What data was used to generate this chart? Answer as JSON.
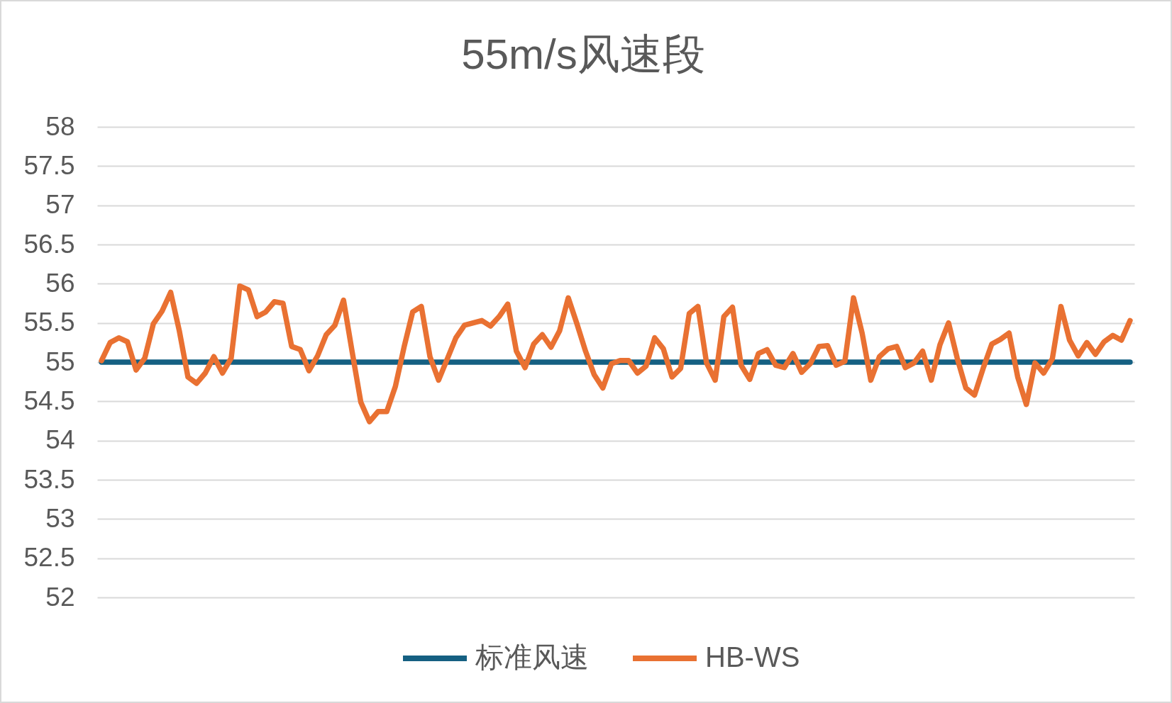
{
  "chart_data": {
    "type": "line",
    "title": "55m/s风速段",
    "categories": [
      null,
      null,
      null,
      null,
      null,
      null,
      null,
      null,
      null,
      null,
      null,
      null,
      null,
      null,
      null,
      null,
      null,
      null,
      null,
      null,
      null,
      null,
      null,
      null,
      null,
      null,
      null,
      null,
      null,
      null,
      null,
      null,
      null,
      null,
      null,
      null,
      null,
      null,
      null,
      null,
      null,
      null,
      null,
      null,
      null,
      null,
      null,
      null,
      null,
      null,
      null,
      null,
      null,
      null,
      null,
      null,
      null,
      null,
      null,
      null,
      null,
      null,
      null,
      null,
      null,
      null,
      null,
      null,
      null,
      null,
      null,
      null,
      null,
      null,
      null,
      null,
      null,
      null,
      null,
      null,
      null,
      null,
      null,
      null,
      null,
      null,
      null,
      null,
      null,
      null,
      null,
      null,
      null,
      null,
      null,
      null,
      null,
      null,
      null,
      null,
      null,
      null,
      null,
      null,
      null,
      null,
      null,
      null,
      null,
      null,
      null,
      null,
      null,
      null,
      null,
      null,
      null,
      null,
      null,
      null
    ],
    "series": [
      {
        "name": "标准风速",
        "color": "#156082",
        "values": [
          55,
          55,
          55,
          55,
          55,
          55,
          55,
          55,
          55,
          55,
          55,
          55,
          55,
          55,
          55,
          55,
          55,
          55,
          55,
          55,
          55,
          55,
          55,
          55,
          55,
          55,
          55,
          55,
          55,
          55,
          55,
          55,
          55,
          55,
          55,
          55,
          55,
          55,
          55,
          55,
          55,
          55,
          55,
          55,
          55,
          55,
          55,
          55,
          55,
          55,
          55,
          55,
          55,
          55,
          55,
          55,
          55,
          55,
          55,
          55,
          55,
          55,
          55,
          55,
          55,
          55,
          55,
          55,
          55,
          55,
          55,
          55,
          55,
          55,
          55,
          55,
          55,
          55,
          55,
          55,
          55,
          55,
          55,
          55,
          55,
          55,
          55,
          55,
          55,
          55,
          55,
          55,
          55,
          55,
          55,
          55,
          55,
          55,
          55,
          55,
          55,
          55,
          55,
          55,
          55,
          55,
          55,
          55,
          55,
          55,
          55,
          55,
          55,
          55,
          55,
          55,
          55,
          55,
          55,
          55
        ]
      },
      {
        "name": "HB-WS",
        "color": "#e97132",
        "values": [
          55.02,
          55.25,
          55.31,
          55.26,
          54.9,
          55.05,
          55.49,
          55.65,
          55.89,
          55.4,
          54.81,
          54.73,
          54.86,
          55.07,
          54.86,
          55.05,
          55.97,
          55.92,
          55.58,
          55.64,
          55.77,
          55.75,
          55.2,
          55.16,
          54.89,
          55.08,
          55.35,
          55.47,
          55.79,
          55.13,
          54.49,
          54.24,
          54.37,
          54.37,
          54.69,
          55.19,
          55.64,
          55.71,
          55.07,
          54.77,
          55.04,
          55.31,
          55.47,
          55.5,
          55.53,
          55.46,
          55.58,
          55.74,
          55.14,
          54.93,
          55.23,
          55.35,
          55.19,
          55.4,
          55.82,
          55.49,
          55.14,
          54.84,
          54.67,
          54.98,
          55.02,
          55.02,
          54.86,
          54.95,
          55.31,
          55.17,
          54.81,
          54.92,
          55.62,
          55.71,
          54.99,
          54.77,
          55.58,
          55.7,
          54.96,
          54.78,
          55.11,
          55.16,
          54.96,
          54.93,
          55.11,
          54.87,
          54.98,
          55.2,
          55.21,
          54.96,
          55.01,
          55.82,
          55.37,
          54.77,
          55.07,
          55.17,
          55.2,
          54.93,
          54.99,
          55.14,
          54.77,
          55.22,
          55.5,
          55.05,
          54.67,
          54.58,
          54.92,
          55.23,
          55.29,
          55.37,
          54.81,
          54.46,
          54.99,
          54.86,
          55.04,
          55.71,
          55.28,
          55.08,
          55.25,
          55.1,
          55.26,
          55.34,
          55.28,
          55.53
        ]
      }
    ],
    "ylim": [
      52,
      58
    ],
    "yticks": [
      52,
      52.5,
      53,
      53.5,
      54,
      54.5,
      55,
      55.5,
      56,
      56.5,
      57,
      57.5,
      58
    ],
    "grid": "y",
    "legend": "bottom",
    "tick_labels": "y",
    "marker": "none",
    "line_style": "solid"
  }
}
